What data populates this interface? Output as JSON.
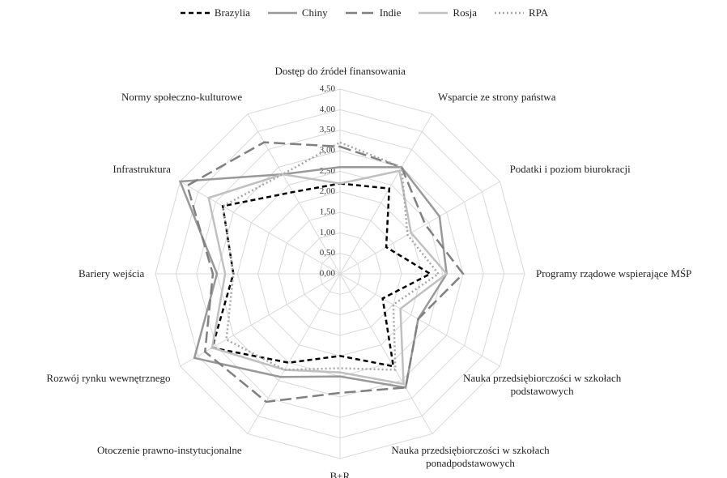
{
  "chart_data": {
    "type": "radar",
    "categories": [
      "Dostęp do źródeł finansowania",
      "Wsparcie ze strony państwa",
      "Podatki i poziom biurokracji",
      "Programy rządowe wspierające MŚP",
      "Nauka przedsiębiorczości w szkołach podstawowych",
      "Nauka przedsiębiorczości w szkołach ponadpodstawowych",
      "B+R",
      "Otoczenie prawno-instytucjonalne",
      "Rozwój rynku wewnętrznego",
      "Bariery wejścia",
      "Infrastruktura",
      "Normy społeczno-kulturowe"
    ],
    "series": [
      {
        "name": "Brazylia",
        "color": "#000000",
        "dash": "6,4",
        "values": [
          2.2,
          2.4,
          1.3,
          2.2,
          1.2,
          2.6,
          2.0,
          2.5,
          3.6,
          2.6,
          3.3,
          2.3
        ]
      },
      {
        "name": "Chiny",
        "color": "#999999",
        "dash": "none",
        "values": [
          2.6,
          3.0,
          2.8,
          2.6,
          2.2,
          3.2,
          2.5,
          2.9,
          4.1,
          3.0,
          4.5,
          2.8
        ]
      },
      {
        "name": "Indie",
        "color": "#808080",
        "dash": "14,6",
        "values": [
          3.1,
          3.0,
          2.4,
          3.0,
          2.2,
          3.2,
          2.9,
          3.6,
          3.8,
          3.1,
          4.3,
          3.7
        ]
      },
      {
        "name": "Rosja",
        "color": "#c0c0c0",
        "dash": "none",
        "values": [
          2.2,
          2.9,
          2.0,
          2.6,
          1.7,
          3.1,
          2.4,
          2.7,
          3.6,
          2.8,
          3.7,
          2.8
        ]
      },
      {
        "name": "RPA",
        "color": "#a6a6a6",
        "dash": "2,3",
        "values": [
          3.2,
          3.0,
          1.9,
          2.4,
          1.5,
          2.7,
          2.3,
          2.7,
          3.2,
          2.6,
          3.3,
          2.8
        ]
      }
    ],
    "rlim": [
      0,
      4.5
    ],
    "rticks": [
      {
        "value": 0,
        "label": "0,00"
      },
      {
        "value": 0.5,
        "label": "0,50"
      },
      {
        "value": 1,
        "label": "1,00"
      },
      {
        "value": 1.5,
        "label": "1,50"
      },
      {
        "value": 2,
        "label": "2,00"
      },
      {
        "value": 2.5,
        "label": "2,50"
      },
      {
        "value": 3,
        "label": "3,00"
      },
      {
        "value": 3.5,
        "label": "3,50"
      },
      {
        "value": 4,
        "label": "4,00"
      },
      {
        "value": 4.5,
        "label": "4,50"
      }
    ],
    "grid": true,
    "legend": "top"
  }
}
